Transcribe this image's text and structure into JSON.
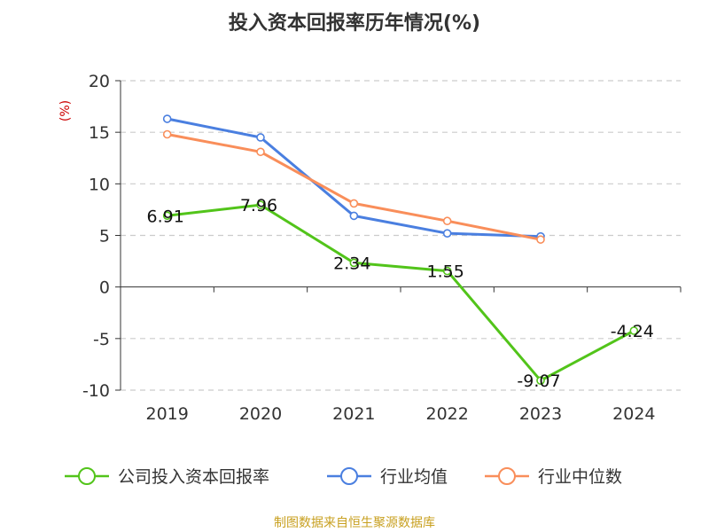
{
  "chart_data": {
    "type": "line",
    "title": "投入资本回报率历年情况(%)",
    "ylabel": "(%)",
    "xlabel": "",
    "categories": [
      "2019",
      "2020",
      "2021",
      "2022",
      "2023",
      "2024"
    ],
    "ylim": [
      -10,
      20
    ],
    "yticks": [
      -10,
      -5,
      0,
      5,
      10,
      15,
      20
    ],
    "grid": true,
    "legend_position": "bottom",
    "series": [
      {
        "name": "公司投入资本回报率",
        "color": "#52c41a",
        "values": [
          6.91,
          7.96,
          2.34,
          1.55,
          -9.07,
          -4.24
        ],
        "labels": [
          "6.91",
          "7.96",
          "2.34",
          "1.55",
          "-9.07",
          "-4.24"
        ]
      },
      {
        "name": "行业均值",
        "color": "#4a7fe0",
        "values": [
          16.3,
          14.5,
          6.9,
          5.2,
          4.9,
          null
        ]
      },
      {
        "name": "行业中位数",
        "color": "#f98e5a",
        "values": [
          14.8,
          13.1,
          8.1,
          6.4,
          4.6,
          null
        ]
      }
    ]
  },
  "source": "制图数据来自恒生聚源数据库",
  "colors": {
    "title": "#333333",
    "axis": "#333333",
    "grid": "#cccccc",
    "ylabel": "#cc0000",
    "source": "#c8a020"
  }
}
